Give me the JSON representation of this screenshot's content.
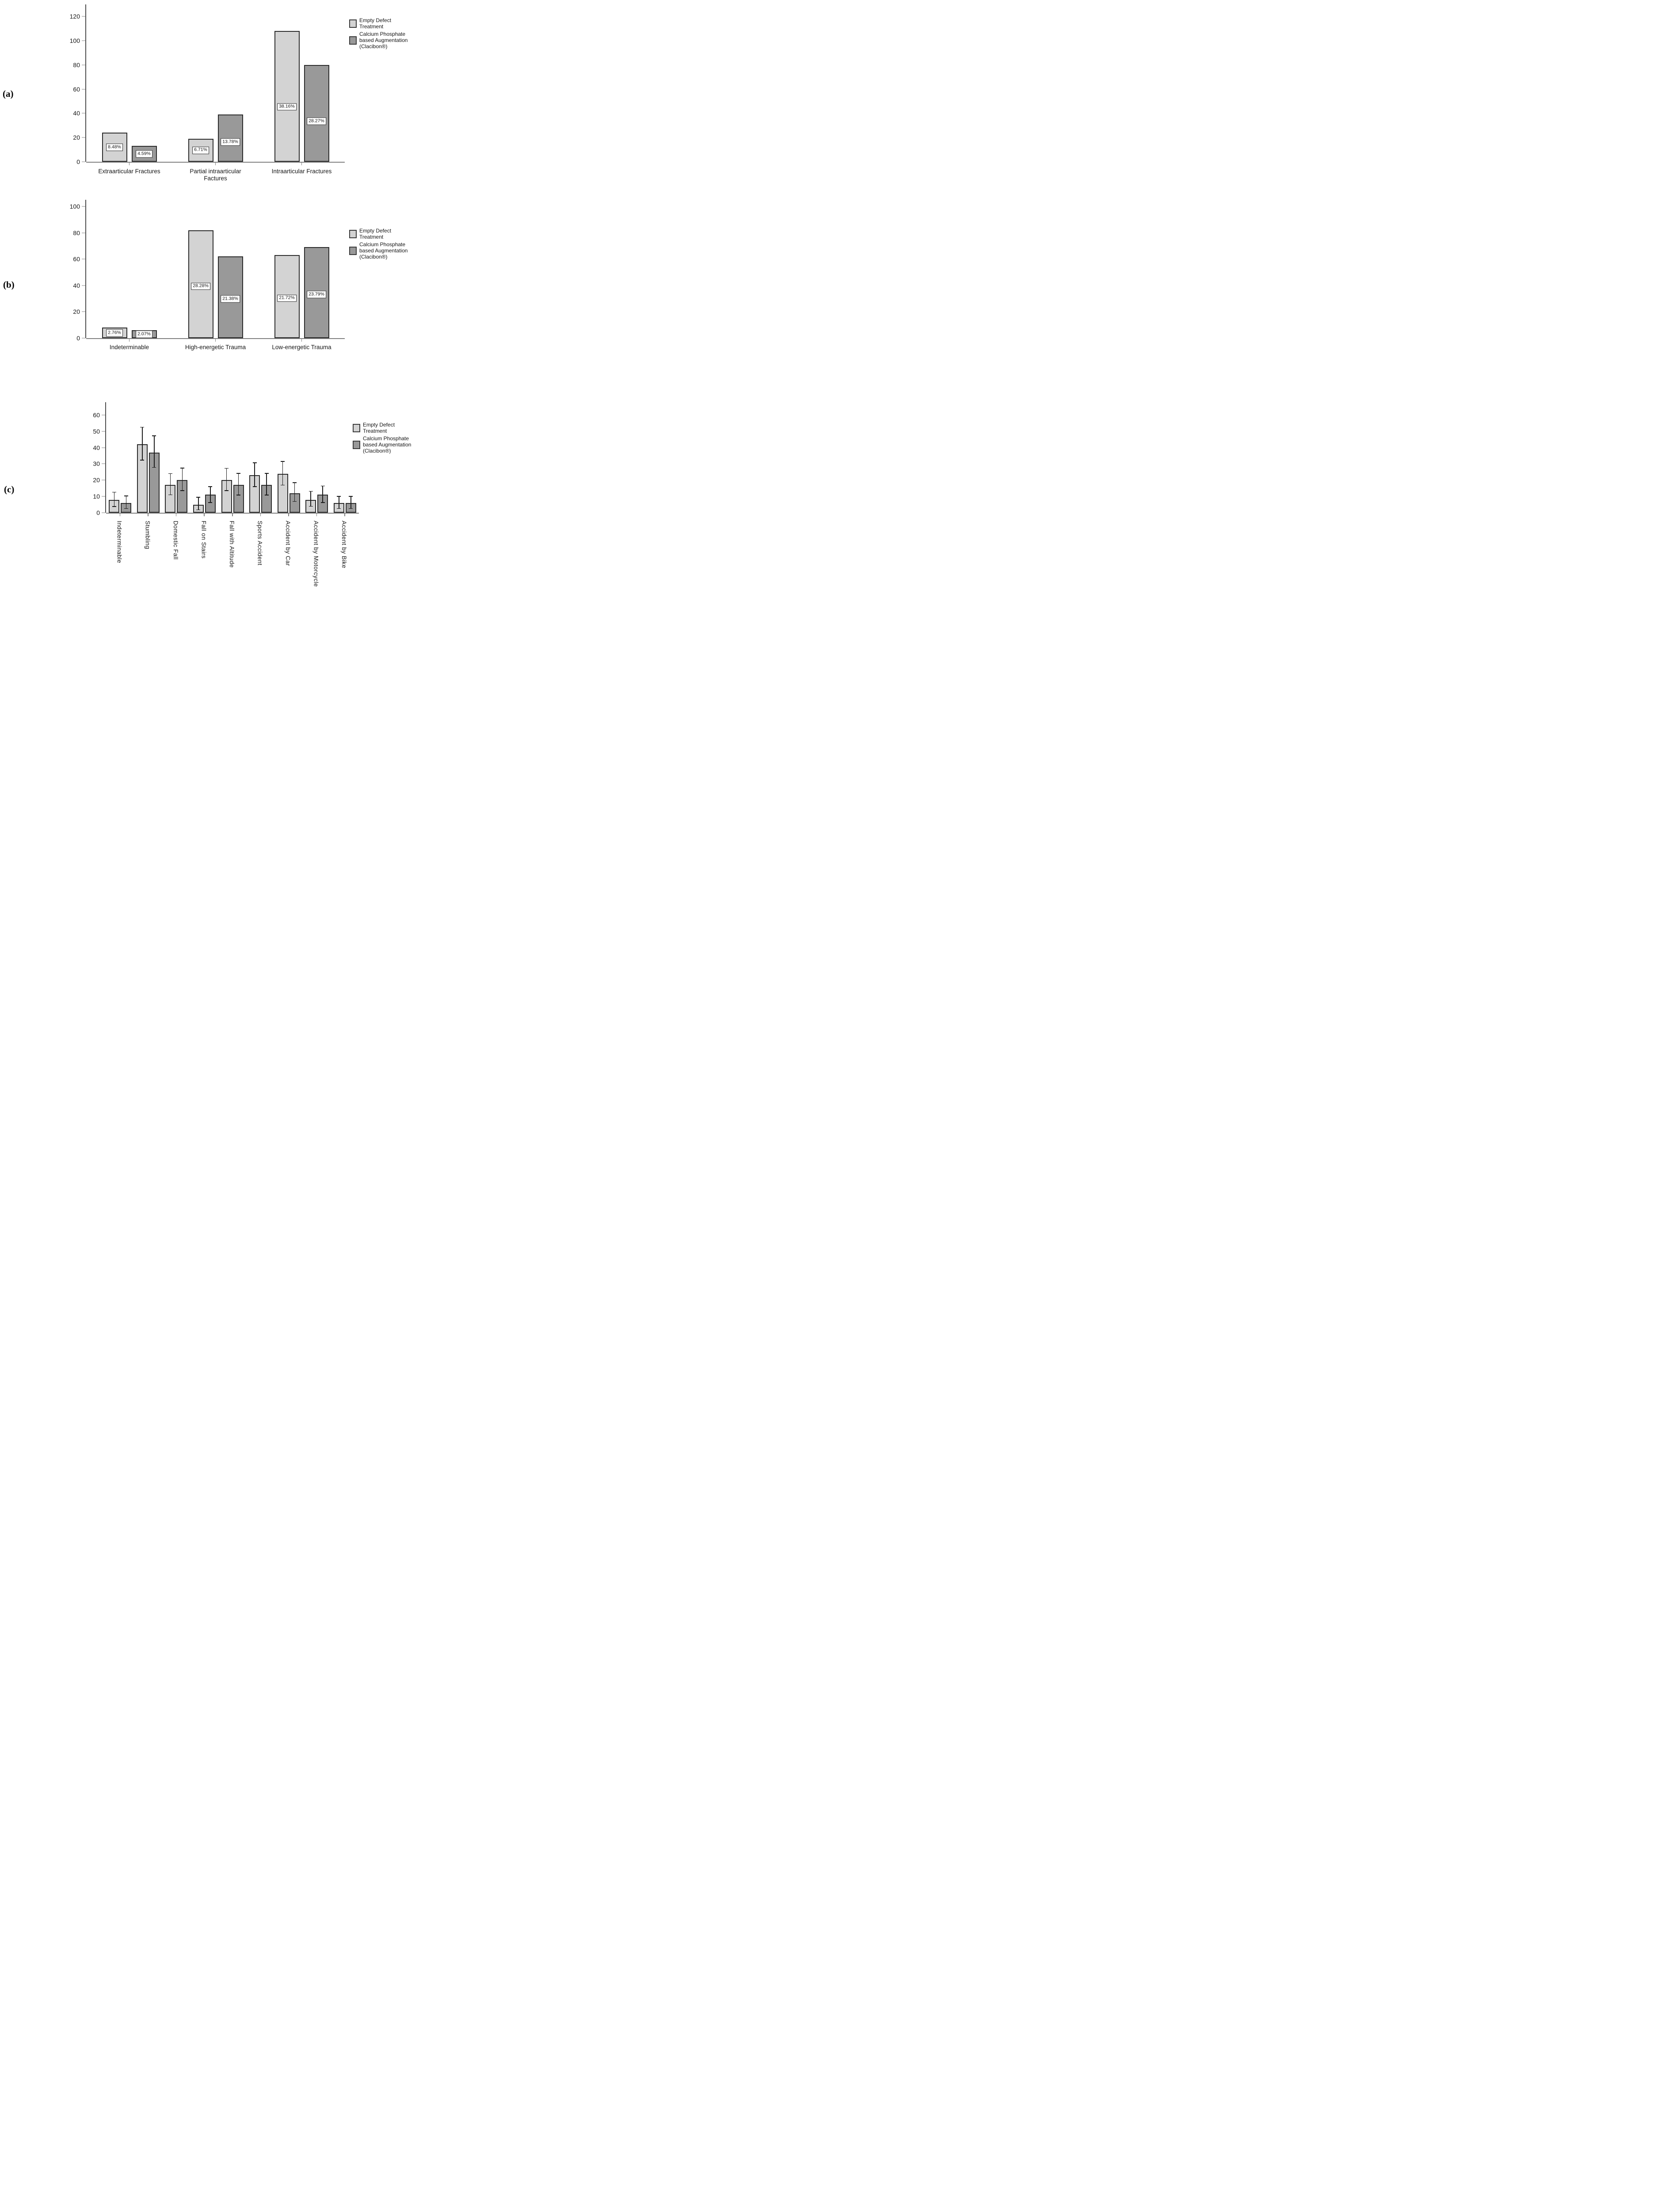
{
  "colors": {
    "series_light": "#d3d3d3",
    "series_dark": "#999999",
    "bar_border": "#2b2b2b",
    "axis": "#4d4d4d",
    "baseline": "#7f7f7f",
    "tick": "#c2c2c2",
    "error": "#1a1a1a",
    "label_box_bg": "#ffffff",
    "label_box_border": "#2b2b2b",
    "text": "#161616"
  },
  "legend": {
    "entries": [
      {
        "swatch": "light",
        "lines": [
          "Empty Defect",
          "Treatment"
        ]
      },
      {
        "swatch": "dark",
        "lines": [
          "Calcium Phosphate",
          "based Augmentation",
          "(Clacibon®)"
        ]
      }
    ]
  },
  "chart_data": [
    {
      "panel_label": "(a)",
      "type": "bar",
      "title": "",
      "xlabel": "",
      "ylabel": "",
      "ylim": [
        0,
        130
      ],
      "yticks": [
        0,
        20,
        40,
        60,
        80,
        100,
        120
      ],
      "grid": false,
      "legend_position": "right-top",
      "categories": [
        "Extraarticular Fractures",
        "Partial intraarticular\nFactures",
        "Intraarticular Fractures"
      ],
      "series": [
        {
          "name": "Empty Defect Treatment",
          "values": [
            24,
            19,
            108
          ],
          "bar_labels": [
            "8.48%",
            "6.71%",
            "38.16%"
          ]
        },
        {
          "name": "Calcium Phosphate based Augmentation (Clacibon®)",
          "values": [
            13,
            39,
            80
          ],
          "bar_labels": [
            "4.59%",
            "13.78%",
            "28.27%"
          ]
        }
      ]
    },
    {
      "panel_label": "(b)",
      "type": "bar",
      "title": "",
      "xlabel": "",
      "ylabel": "",
      "ylim": [
        0,
        105
      ],
      "yticks": [
        0,
        20,
        40,
        60,
        80,
        100
      ],
      "grid": false,
      "legend_position": "right-top",
      "categories": [
        "Indeterminable",
        "High-energetic Trauma",
        "Low-energetic Trauma"
      ],
      "series": [
        {
          "name": "Empty Defect Treatment",
          "values": [
            8,
            82,
            63
          ],
          "bar_labels": [
            "2.76%",
            "28.28%",
            "21.72%"
          ]
        },
        {
          "name": "Calcium Phosphate based Augmentation (Clacibon®)",
          "values": [
            6,
            62,
            69
          ],
          "bar_labels": [
            "2.07%",
            "21.38%",
            "23.79%"
          ]
        }
      ]
    },
    {
      "panel_label": "(c)",
      "type": "bar",
      "title": "",
      "xlabel": "",
      "ylabel": "",
      "ylim": [
        0,
        68
      ],
      "yticks": [
        0,
        10,
        20,
        30,
        40,
        50,
        60
      ],
      "grid": false,
      "legend_position": "right-top",
      "error_bars": true,
      "categories": [
        "Indeterminable",
        "Stumbling",
        "Domestic Fall",
        "Fall on Stairs",
        "Fall with Altitude",
        "Sports Accident",
        "Accident by Car",
        "Accident by Motorcycle",
        "Accident by Bike"
      ],
      "series": [
        {
          "name": "Empty Defect Treatment",
          "values": [
            8,
            42,
            17,
            5,
            20,
            23,
            24,
            8,
            6
          ],
          "error_low": [
            3.8,
            32.3,
            11.0,
            1.8,
            13.5,
            16.0,
            17.0,
            4.0,
            2.6
          ],
          "error_high": [
            12.6,
            52.5,
            24.0,
            9.5,
            27.3,
            30.7,
            31.5,
            13.1,
            10.1
          ]
        },
        {
          "name": "Calcium Phosphate based Augmentation (Clacibon®)",
          "values": [
            6,
            37,
            20,
            11,
            17,
            17,
            12,
            11,
            6
          ],
          "error_low": [
            2.6,
            27.8,
            13.5,
            6.3,
            10.9,
            10.9,
            6.9,
            6.2,
            2.6
          ],
          "error_high": [
            10.3,
            47.2,
            27.4,
            16.0,
            24.1,
            24.2,
            18.5,
            16.4,
            10.1
          ]
        }
      ]
    }
  ]
}
